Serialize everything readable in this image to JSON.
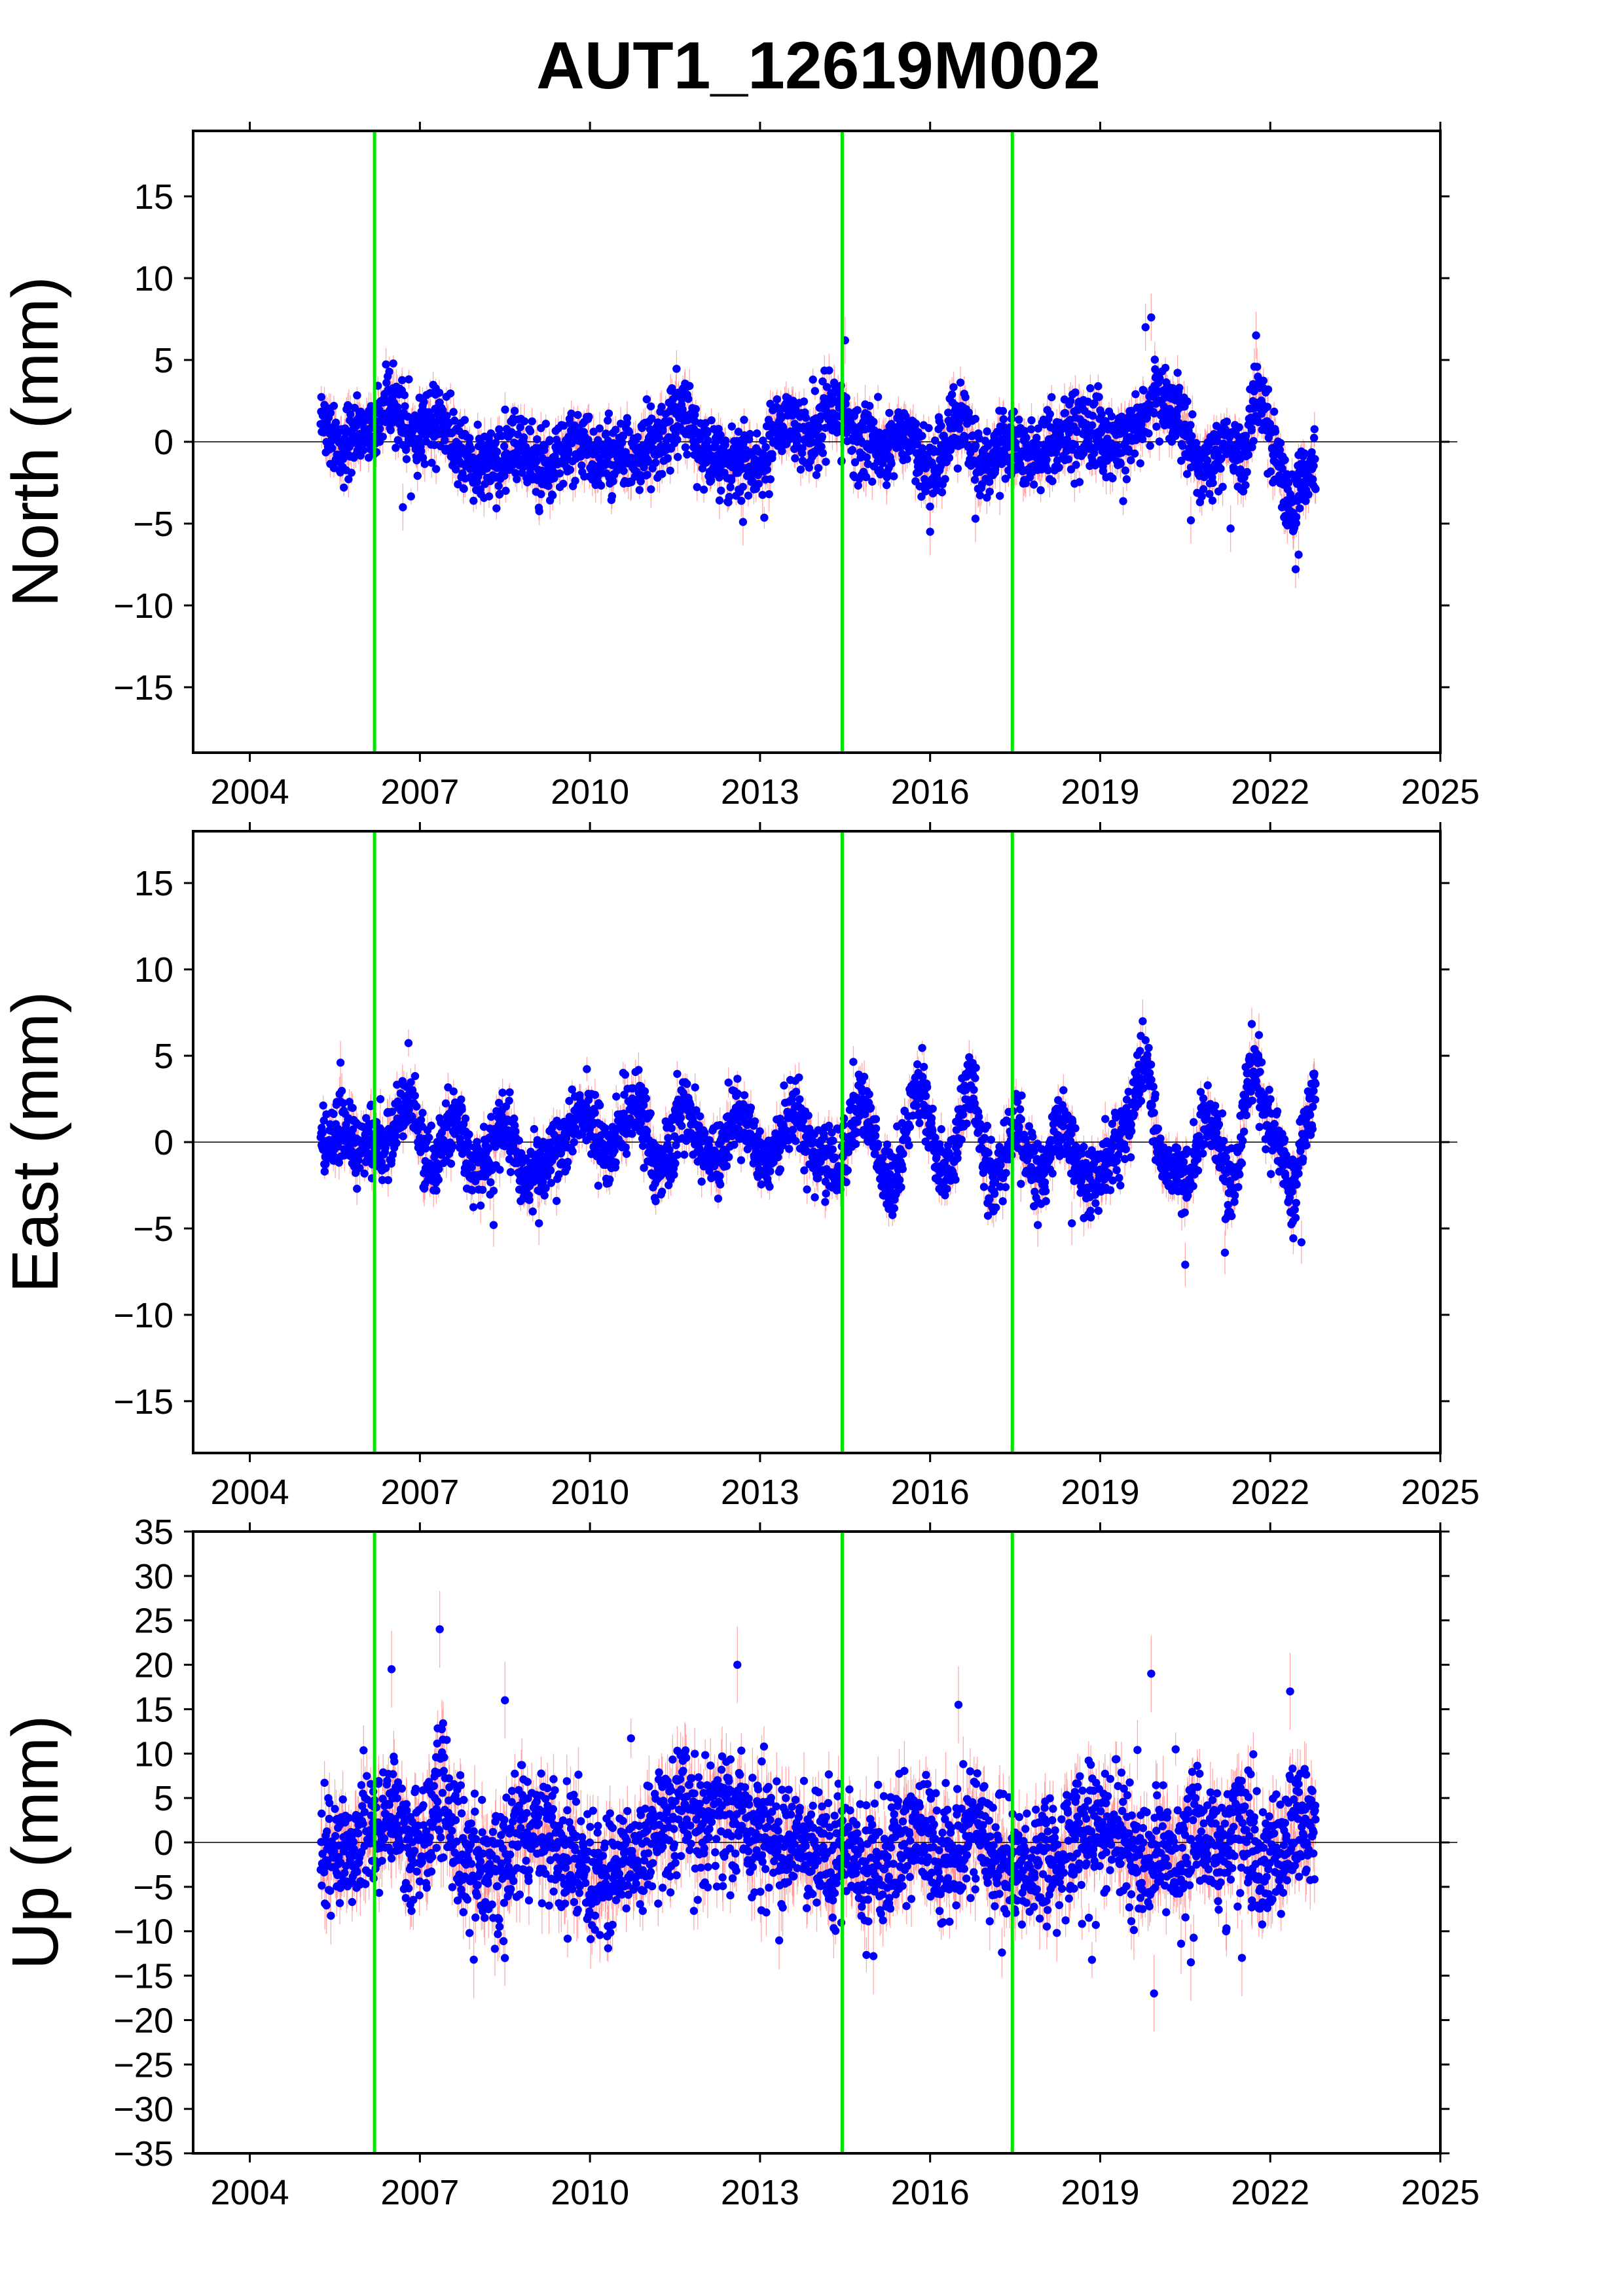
{
  "title": "AUT1_12619M002",
  "colors": {
    "points": "#0000ff",
    "errorbars": "#ff6666",
    "events": "#00e600",
    "frame": "#000000",
    "zero_line": "#000000"
  },
  "chart_data": [
    {
      "type": "scatter",
      "panel": "north",
      "ylabel": "North (mm)",
      "xlim": [
        2003,
        2025
      ],
      "ylim": [
        -19,
        19
      ],
      "x_ticks": [
        2004,
        2007,
        2010,
        2013,
        2016,
        2019,
        2022,
        2025
      ],
      "y_ticks": [
        -15,
        -10,
        -5,
        0,
        5,
        10,
        15
      ],
      "event_lines": [
        2006.2,
        2014.45,
        2017.45
      ],
      "x_range": [
        2005.25,
        2022.8
      ],
      "anchors": [
        [
          2005.3,
          1.5
        ],
        [
          2005.6,
          -0.6
        ],
        [
          2006.1,
          0.5
        ],
        [
          2006.5,
          2.6
        ],
        [
          2006.9,
          0.4
        ],
        [
          2007.3,
          1.7
        ],
        [
          2007.8,
          -1.0
        ],
        [
          2008.2,
          -1.3
        ],
        [
          2008.7,
          -0.4
        ],
        [
          2009.2,
          -1.6
        ],
        [
          2009.7,
          -0.2
        ],
        [
          2010.2,
          -1.0
        ],
        [
          2010.7,
          -0.8
        ],
        [
          2011.2,
          -0.3
        ],
        [
          2011.6,
          1.8
        ],
        [
          2012.0,
          -0.3
        ],
        [
          2012.5,
          -1.0
        ],
        [
          2013.0,
          -1.5
        ],
        [
          2013.4,
          1.5
        ],
        [
          2013.8,
          0.2
        ],
        [
          2014.3,
          2.0
        ],
        [
          2014.7,
          0.2
        ],
        [
          2015.2,
          -0.4
        ],
        [
          2015.6,
          0.5
        ],
        [
          2016.0,
          -1.8
        ],
        [
          2016.5,
          1.5
        ],
        [
          2016.9,
          -1.2
        ],
        [
          2017.4,
          0.0
        ],
        [
          2017.8,
          -1.0
        ],
        [
          2018.3,
          0.2
        ],
        [
          2018.8,
          0.7
        ],
        [
          2019.3,
          -0.2
        ],
        [
          2019.7,
          1.0
        ],
        [
          2020.0,
          3.2
        ],
        [
          2020.4,
          1.3
        ],
        [
          2020.8,
          -1.5
        ],
        [
          2021.2,
          -0.2
        ],
        [
          2021.5,
          -1.2
        ],
        [
          2021.8,
          3.3
        ],
        [
          2022.1,
          -1.0
        ],
        [
          2022.4,
          -3.8
        ],
        [
          2022.6,
          -2.0
        ],
        [
          2022.8,
          -1.0
        ]
      ],
      "noise": 1.1,
      "errorbar": 0.8,
      "outliers": [
        [
          2014.5,
          6.2
        ],
        [
          2019.9,
          7.6
        ],
        [
          2019.8,
          7.0
        ],
        [
          2021.75,
          6.5
        ],
        [
          2022.5,
          -6.9
        ],
        [
          2016.0,
          -5.5
        ],
        [
          2012.7,
          -4.9
        ],
        [
          2006.7,
          -4.0
        ],
        [
          2016.8,
          -4.7
        ],
        [
          2020.6,
          -4.8
        ],
        [
          2021.3,
          -5.3
        ]
      ]
    },
    {
      "type": "scatter",
      "panel": "east",
      "ylabel": "East (mm)",
      "xlim": [
        2003,
        2025
      ],
      "ylim": [
        -18,
        18
      ],
      "x_ticks": [
        2004,
        2007,
        2010,
        2013,
        2016,
        2019,
        2022,
        2025
      ],
      "y_ticks": [
        -15,
        -10,
        -5,
        0,
        5,
        10,
        15
      ],
      "event_lines": [
        2006.2,
        2014.45,
        2017.45
      ],
      "x_range": [
        2005.25,
        2022.8
      ],
      "anchors": [
        [
          2005.3,
          -0.3
        ],
        [
          2005.6,
          0.6
        ],
        [
          2006.0,
          -0.1
        ],
        [
          2006.4,
          0.2
        ],
        [
          2006.8,
          2.3
        ],
        [
          2007.2,
          -1.3
        ],
        [
          2007.6,
          1.3
        ],
        [
          2008.0,
          -1.7
        ],
        [
          2008.5,
          1.0
        ],
        [
          2008.9,
          -2.1
        ],
        [
          2009.4,
          -0.5
        ],
        [
          2009.9,
          1.8
        ],
        [
          2010.3,
          -0.7
        ],
        [
          2010.8,
          2.3
        ],
        [
          2011.2,
          -1.5
        ],
        [
          2011.7,
          1.8
        ],
        [
          2012.2,
          -1.3
        ],
        [
          2012.6,
          1.8
        ],
        [
          2013.1,
          -1.0
        ],
        [
          2013.6,
          1.6
        ],
        [
          2014.0,
          -0.8
        ],
        [
          2014.4,
          -1.4
        ],
        [
          2014.8,
          2.2
        ],
        [
          2015.3,
          -2.4
        ],
        [
          2015.8,
          2.8
        ],
        [
          2016.3,
          -2.1
        ],
        [
          2016.7,
          3.2
        ],
        [
          2017.1,
          -2.2
        ],
        [
          2017.5,
          0.8
        ],
        [
          2017.9,
          -2.0
        ],
        [
          2018.3,
          0.6
        ],
        [
          2018.8,
          -2.3
        ],
        [
          2019.3,
          -0.5
        ],
        [
          2019.8,
          4.2
        ],
        [
          2020.1,
          -1.2
        ],
        [
          2020.5,
          -2.0
        ],
        [
          2020.9,
          1.3
        ],
        [
          2021.3,
          -2.6
        ],
        [
          2021.7,
          4.0
        ],
        [
          2022.1,
          0.3
        ],
        [
          2022.4,
          -3.5
        ],
        [
          2022.6,
          0.5
        ],
        [
          2022.8,
          2.8
        ]
      ],
      "noise": 1.0,
      "errorbar": 0.7,
      "outliers": [
        [
          2019.75,
          7.0
        ],
        [
          2021.8,
          6.2
        ],
        [
          2005.6,
          4.6
        ],
        [
          2020.5,
          -7.1
        ],
        [
          2021.2,
          -6.4
        ],
        [
          2022.55,
          -5.8
        ],
        [
          2008.3,
          -4.8
        ],
        [
          2009.1,
          -4.7
        ],
        [
          2017.9,
          -4.8
        ],
        [
          2018.5,
          -4.7
        ]
      ]
    },
    {
      "type": "scatter",
      "panel": "up",
      "ylabel": "Up (mm)",
      "xlim": [
        2003,
        2025
      ],
      "ylim": [
        -35,
        35
      ],
      "x_ticks": [
        2004,
        2007,
        2010,
        2013,
        2016,
        2019,
        2022,
        2025
      ],
      "y_ticks": [
        -35,
        -30,
        -25,
        -20,
        -15,
        -10,
        -5,
        0,
        5,
        10,
        15,
        20,
        25,
        30,
        35
      ],
      "event_lines": [
        2006.2,
        2014.45,
        2017.45
      ],
      "x_range": [
        2005.25,
        2022.8
      ],
      "anchors": [
        [
          2005.3,
          0.0
        ],
        [
          2005.7,
          -2.0
        ],
        [
          2006.1,
          1.5
        ],
        [
          2006.5,
          3.0
        ],
        [
          2006.9,
          -1.0
        ],
        [
          2007.4,
          5.0
        ],
        [
          2007.8,
          -2.0
        ],
        [
          2008.3,
          -3.0
        ],
        [
          2008.8,
          1.0
        ],
        [
          2009.3,
          0.5
        ],
        [
          2009.8,
          -2.5
        ],
        [
          2010.2,
          -4.0
        ],
        [
          2010.7,
          -2.0
        ],
        [
          2011.2,
          2.0
        ],
        [
          2011.6,
          4.0
        ],
        [
          2012.0,
          2.0
        ],
        [
          2012.5,
          3.0
        ],
        [
          2013.0,
          1.0
        ],
        [
          2013.5,
          0.0
        ],
        [
          2014.0,
          -1.0
        ],
        [
          2014.5,
          -1.0
        ],
        [
          2014.9,
          -4.0
        ],
        [
          2015.4,
          -1.0
        ],
        [
          2015.8,
          1.0
        ],
        [
          2016.3,
          -2.0
        ],
        [
          2016.8,
          2.0
        ],
        [
          2017.3,
          -2.5
        ],
        [
          2017.8,
          -1.5
        ],
        [
          2018.3,
          -1.0
        ],
        [
          2018.8,
          1.0
        ],
        [
          2019.3,
          0.5
        ],
        [
          2019.8,
          -2.0
        ],
        [
          2020.3,
          -1.0
        ],
        [
          2020.7,
          2.0
        ],
        [
          2021.1,
          -1.0
        ],
        [
          2021.5,
          3.0
        ],
        [
          2021.8,
          -3.0
        ],
        [
          2022.1,
          -2.0
        ],
        [
          2022.5,
          2.0
        ],
        [
          2022.8,
          1.0
        ]
      ],
      "noise": 3.6,
      "errorbar": 2.4,
      "outliers": [
        [
          2007.35,
          24.0
        ],
        [
          2012.6,
          20.0
        ],
        [
          2006.5,
          19.5
        ],
        [
          2019.9,
          19.0
        ],
        [
          2008.5,
          16.0
        ],
        [
          2016.5,
          15.5
        ],
        [
          2019.95,
          -17.0
        ],
        [
          2007.95,
          -13.2
        ],
        [
          2020.6,
          -13.5
        ],
        [
          2021.5,
          -13.0
        ],
        [
          2015.0,
          -12.8
        ],
        [
          2022.35,
          17.0
        ]
      ]
    }
  ]
}
